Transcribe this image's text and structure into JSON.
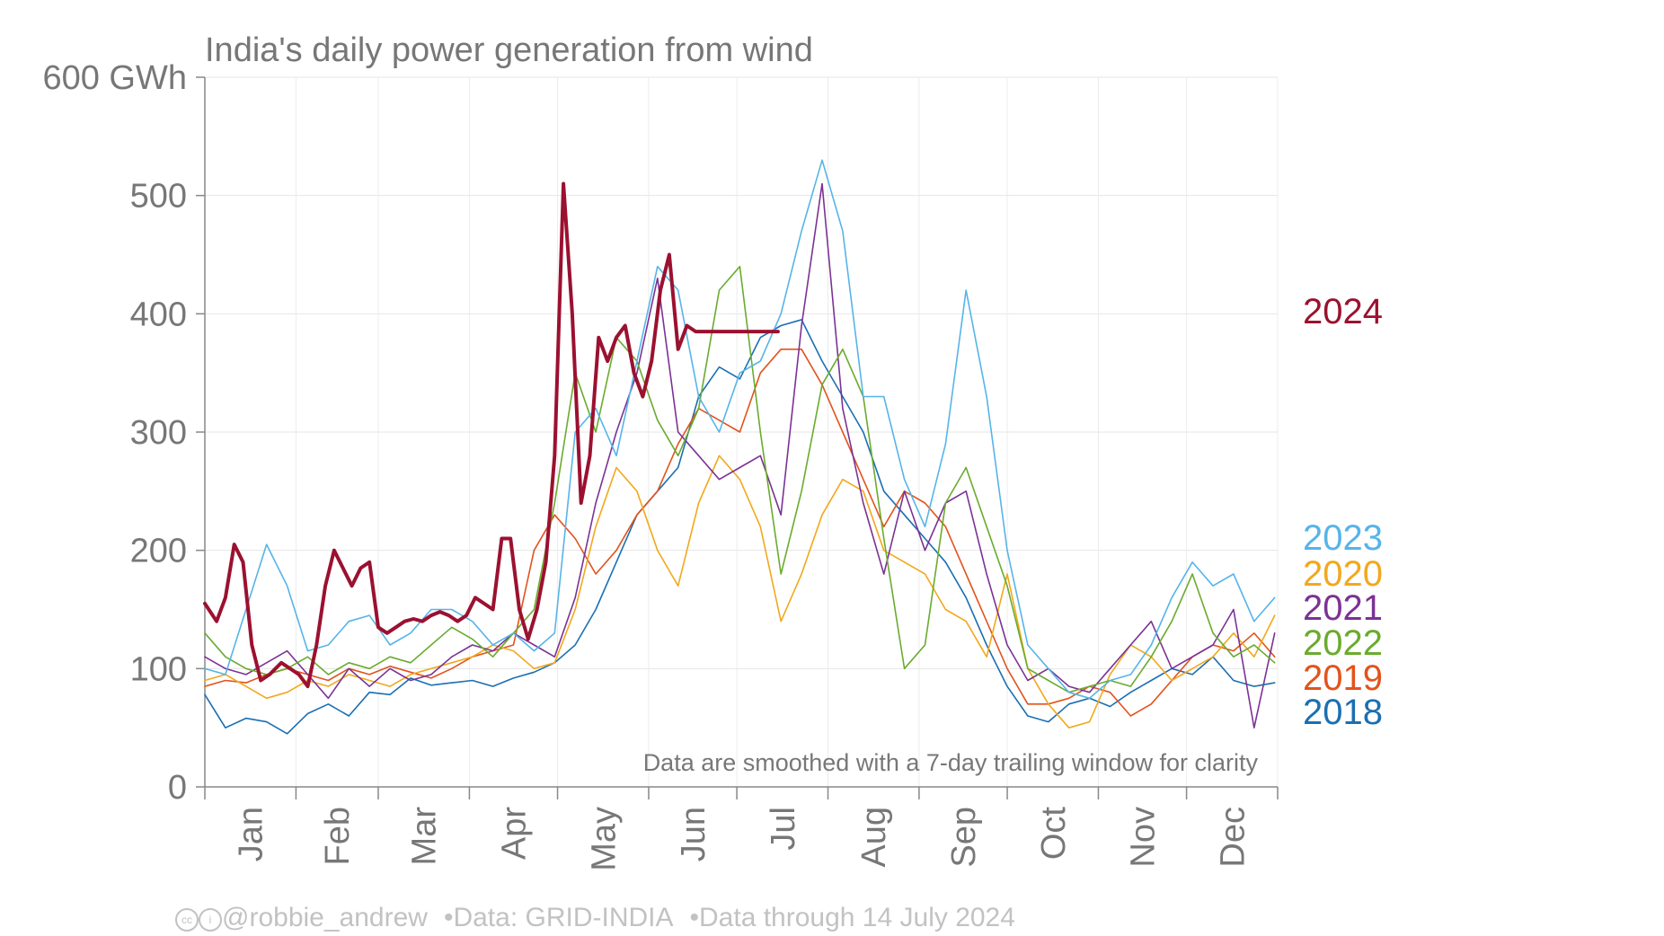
{
  "chart_data": {
    "type": "line",
    "title": "India's daily power generation from wind",
    "y_unit_label": "600 GWh",
    "ylim": [
      0,
      600
    ],
    "y_ticks": [
      0,
      100,
      200,
      300,
      400,
      500,
      600
    ],
    "y_tick_labels": [
      "0",
      "100",
      "200",
      "300",
      "400",
      "500",
      "600 GWh"
    ],
    "months": [
      "Jan",
      "Feb",
      "Mar",
      "Apr",
      "May",
      "Jun",
      "Jul",
      "Aug",
      "Sep",
      "Oct",
      "Nov",
      "Dec"
    ],
    "xlim_days": [
      1,
      366
    ],
    "grid": true,
    "annotation": "Data are smoothed with a 7-day trailing window for clarity",
    "series": [
      {
        "name": "2018",
        "color": "#1a6fb3",
        "days": [
          1,
          8,
          15,
          22,
          29,
          36,
          43,
          50,
          57,
          64,
          71,
          78,
          85,
          92,
          99,
          106,
          113,
          120,
          127,
          134,
          141,
          148,
          155,
          162,
          169,
          176,
          183,
          190,
          197,
          204,
          211,
          218,
          225,
          232,
          239,
          246,
          253,
          260,
          267,
          274,
          281,
          288,
          295,
          302,
          309,
          316,
          323,
          330,
          337,
          344,
          351,
          358,
          365
        ],
        "values": [
          78,
          50,
          58,
          55,
          45,
          62,
          70,
          60,
          80,
          78,
          92,
          86,
          88,
          90,
          85,
          92,
          97,
          105,
          120,
          150,
          190,
          230,
          250,
          270,
          330,
          355,
          345,
          380,
          390,
          395,
          360,
          330,
          300,
          250,
          230,
          210,
          190,
          160,
          120,
          85,
          60,
          55,
          70,
          75,
          68,
          80,
          90,
          100,
          95,
          110,
          90,
          85,
          88
        ]
      },
      {
        "name": "2019",
        "color": "#e2531d",
        "days": [
          1,
          8,
          15,
          22,
          29,
          36,
          43,
          50,
          57,
          64,
          71,
          78,
          85,
          92,
          99,
          106,
          113,
          120,
          127,
          134,
          141,
          148,
          155,
          162,
          169,
          176,
          183,
          190,
          197,
          204,
          211,
          218,
          225,
          232,
          239,
          246,
          253,
          260,
          267,
          274,
          281,
          288,
          295,
          302,
          309,
          316,
          323,
          330,
          337,
          344,
          351,
          358,
          365
        ],
        "values": [
          85,
          90,
          88,
          95,
          100,
          95,
          90,
          100,
          95,
          102,
          97,
          92,
          100,
          110,
          115,
          120,
          200,
          230,
          210,
          180,
          200,
          230,
          250,
          290,
          320,
          310,
          300,
          350,
          370,
          370,
          340,
          300,
          260,
          220,
          250,
          240,
          220,
          180,
          140,
          100,
          70,
          70,
          75,
          85,
          80,
          60,
          70,
          90,
          110,
          120,
          115,
          130,
          110
        ]
      },
      {
        "name": "2020",
        "color": "#f2a81d",
        "days": [
          1,
          8,
          15,
          22,
          29,
          36,
          43,
          50,
          57,
          64,
          71,
          78,
          85,
          92,
          99,
          106,
          113,
          120,
          127,
          134,
          141,
          148,
          155,
          162,
          169,
          176,
          183,
          190,
          197,
          204,
          211,
          218,
          225,
          232,
          239,
          246,
          253,
          260,
          267,
          274,
          281,
          288,
          295,
          302,
          309,
          316,
          323,
          330,
          337,
          344,
          351,
          358,
          365
        ],
        "values": [
          90,
          95,
          85,
          75,
          80,
          90,
          85,
          95,
          90,
          85,
          95,
          100,
          105,
          110,
          120,
          115,
          100,
          105,
          150,
          220,
          270,
          250,
          200,
          170,
          240,
          280,
          260,
          220,
          140,
          180,
          230,
          260,
          250,
          200,
          190,
          180,
          150,
          140,
          110,
          180,
          100,
          70,
          50,
          55,
          95,
          120,
          110,
          90,
          100,
          110,
          130,
          110,
          145
        ]
      },
      {
        "name": "2021",
        "color": "#7b3294",
        "days": [
          1,
          8,
          15,
          22,
          29,
          36,
          43,
          50,
          57,
          64,
          71,
          78,
          85,
          92,
          99,
          106,
          113,
          120,
          127,
          134,
          141,
          148,
          155,
          162,
          169,
          176,
          183,
          190,
          197,
          204,
          211,
          218,
          225,
          232,
          239,
          246,
          253,
          260,
          267,
          274,
          281,
          288,
          295,
          302,
          309,
          316,
          323,
          330,
          337,
          344,
          351,
          358,
          365
        ],
        "values": [
          110,
          100,
          95,
          105,
          115,
          95,
          75,
          100,
          85,
          100,
          90,
          95,
          110,
          120,
          115,
          130,
          120,
          110,
          160,
          240,
          300,
          350,
          430,
          300,
          280,
          260,
          270,
          280,
          230,
          390,
          510,
          320,
          240,
          180,
          250,
          200,
          240,
          250,
          180,
          120,
          90,
          100,
          85,
          80,
          100,
          120,
          140,
          100,
          110,
          120,
          150,
          50,
          130
        ]
      },
      {
        "name": "2022",
        "color": "#6aab2e",
        "days": [
          1,
          8,
          15,
          22,
          29,
          36,
          43,
          50,
          57,
          64,
          71,
          78,
          85,
          92,
          99,
          106,
          113,
          120,
          127,
          134,
          141,
          148,
          155,
          162,
          169,
          176,
          183,
          190,
          197,
          204,
          211,
          218,
          225,
          232,
          239,
          246,
          253,
          260,
          267,
          274,
          281,
          288,
          295,
          302,
          309,
          316,
          323,
          330,
          337,
          344,
          351,
          358,
          365
        ],
        "values": [
          130,
          110,
          100,
          95,
          100,
          110,
          95,
          105,
          100,
          110,
          105,
          120,
          135,
          125,
          110,
          130,
          150,
          240,
          350,
          300,
          380,
          360,
          310,
          280,
          320,
          420,
          440,
          300,
          180,
          250,
          340,
          370,
          330,
          210,
          100,
          120,
          240,
          270,
          220,
          170,
          100,
          90,
          80,
          85,
          90,
          85,
          110,
          140,
          180,
          130,
          110,
          120,
          105
        ]
      },
      {
        "name": "2023",
        "color": "#56b4e9",
        "days": [
          1,
          8,
          15,
          22,
          29,
          36,
          43,
          50,
          57,
          64,
          71,
          78,
          85,
          92,
          99,
          106,
          113,
          120,
          127,
          134,
          141,
          148,
          155,
          162,
          169,
          176,
          183,
          190,
          197,
          204,
          211,
          218,
          225,
          232,
          239,
          246,
          253,
          260,
          267,
          274,
          281,
          288,
          295,
          302,
          309,
          316,
          323,
          330,
          337,
          344,
          351,
          358,
          365
        ],
        "values": [
          100,
          95,
          150,
          205,
          170,
          115,
          120,
          140,
          145,
          120,
          130,
          150,
          150,
          140,
          120,
          130,
          115,
          130,
          300,
          320,
          280,
          360,
          440,
          420,
          330,
          300,
          350,
          360,
          400,
          470,
          530,
          470,
          330,
          330,
          260,
          220,
          290,
          420,
          330,
          200,
          120,
          100,
          80,
          75,
          90,
          95,
          120,
          160,
          190,
          170,
          180,
          140,
          160
        ]
      },
      {
        "name": "2024",
        "color": "#9b1130",
        "days": [
          1,
          5,
          8,
          11,
          14,
          17,
          20,
          23,
          27,
          30,
          33,
          36,
          39,
          42,
          45,
          48,
          51,
          54,
          57,
          60,
          63,
          66,
          69,
          72,
          75,
          78,
          81,
          84,
          87,
          90,
          93,
          96,
          99,
          102,
          105,
          108,
          111,
          114,
          117,
          120,
          123,
          126,
          129,
          132,
          135,
          138,
          141,
          144,
          147,
          150,
          153,
          156,
          159,
          162,
          165,
          168,
          171,
          174,
          177,
          180,
          183,
          186,
          189,
          192,
          195,
          196
        ],
        "values": [
          155,
          140,
          160,
          205,
          190,
          120,
          90,
          95,
          105,
          100,
          95,
          85,
          120,
          170,
          200,
          185,
          170,
          185,
          190,
          135,
          130,
          135,
          140,
          142,
          140,
          145,
          148,
          145,
          140,
          145,
          160,
          155,
          150,
          210,
          210,
          150,
          125,
          150,
          190,
          280,
          510,
          400,
          240,
          280,
          380,
          360,
          380,
          390,
          350,
          330,
          360,
          420,
          450,
          370,
          390,
          385,
          385,
          385,
          385,
          385,
          385,
          385,
          385,
          385,
          385,
          385
        ]
      }
    ]
  },
  "footer": {
    "handle": "@robbie_andrew",
    "source": "Data: GRID-INDIA",
    "through": "Data through 14 July 2024"
  }
}
